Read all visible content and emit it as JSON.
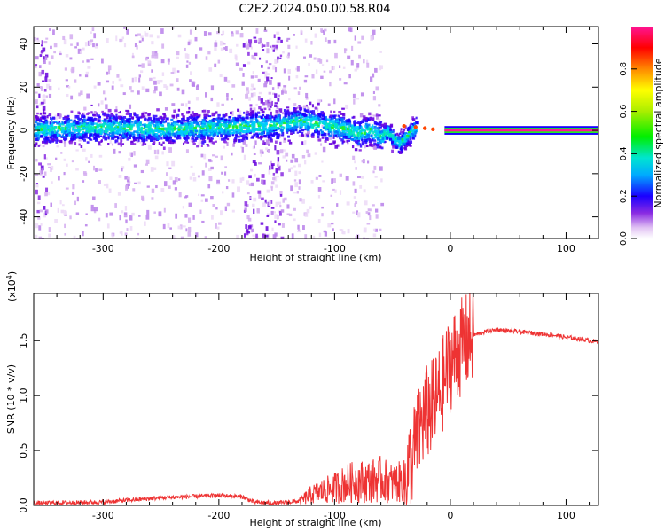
{
  "figure_title": "C2E2.2024.050.00.58.R04",
  "colorbar": {
    "label": "Normalized spectral amplitude",
    "ticks": [
      "0.0",
      "0.2",
      "0.4",
      "0.6",
      "0.8"
    ],
    "tick_values": [
      0.0,
      0.2,
      0.4,
      0.6,
      0.8
    ],
    "range": [
      0,
      1
    ]
  },
  "chart_data": [
    {
      "type": "heatmap",
      "xlabel": "Height of straight line (km)",
      "ylabel": "Frequency (Hz)",
      "xlim": [
        -360,
        128
      ],
      "ylim": [
        -50,
        48
      ],
      "x_ticks": [
        "-300",
        "-200",
        "-100",
        "0",
        "100"
      ],
      "x_tick_values": [
        -300,
        -200,
        -100,
        0,
        100
      ],
      "y_ticks": [
        "40",
        "20",
        "0",
        "-20",
        "-40"
      ],
      "y_tick_values": [
        40,
        20,
        0,
        -20,
        -40
      ],
      "tone_path": {
        "x": [
          -360,
          -300,
          -250,
          -200,
          -150,
          -130,
          -110,
          -90,
          -80,
          -70,
          -60,
          -55,
          -50,
          -45,
          -40,
          -35,
          -30,
          -25,
          -20,
          -15,
          -10,
          -5,
          0,
          50,
          128
        ],
        "y": [
          1,
          2,
          1,
          2,
          3,
          5,
          3,
          1,
          -1,
          1,
          -2,
          0,
          -3,
          -6,
          -3,
          0,
          2,
          2,
          1,
          0,
          0.5,
          0.5,
          0,
          0,
          0
        ]
      },
      "noise_bands_x": [
        [
          -360,
          -350
        ],
        [
          -180,
          -145
        ]
      ],
      "grid": false
    },
    {
      "type": "line",
      "xlabel": "Height of straight line (km)",
      "ylabel": "SNR (10 * v/v)",
      "scale_label": "(x10",
      "scale_exponent": "4",
      "scale_suffix": ")",
      "xlim": [
        -360,
        128
      ],
      "ylim": [
        0,
        1.93
      ],
      "x_ticks": [
        "-300",
        "-200",
        "-100",
        "0",
        "100"
      ],
      "x_tick_values": [
        -300,
        -200,
        -100,
        0,
        100
      ],
      "y_ticks": [
        "0.0",
        "0.5",
        "1.0",
        "1.5"
      ],
      "y_tick_values": [
        0.0,
        0.5,
        1.0,
        1.5
      ],
      "color": "#ee3333",
      "series": [
        {
          "x": [
            -360,
            -300,
            -250,
            -200,
            -180,
            -170,
            -150,
            -130,
            -120,
            -110,
            -100,
            -90,
            -80,
            -70,
            -60,
            -50,
            -40,
            -35,
            -30,
            -25,
            -20,
            -15,
            -10,
            -5,
            0,
            10,
            20,
            30,
            40,
            50,
            60,
            70,
            80,
            90,
            100,
            110,
            120,
            128
          ],
          "y": [
            0.02,
            0.03,
            0.07,
            0.09,
            0.08,
            0.03,
            0.02,
            0.04,
            0.1,
            0.13,
            0.16,
            0.2,
            0.22,
            0.22,
            0.24,
            0.2,
            0.22,
            0.35,
            0.55,
            0.75,
            0.85,
            0.9,
            1.0,
            1.15,
            1.3,
            1.45,
            1.55,
            1.58,
            1.6,
            1.59,
            1.58,
            1.57,
            1.56,
            1.55,
            1.53,
            1.52,
            1.5,
            1.49
          ]
        }
      ],
      "grid": false
    }
  ]
}
